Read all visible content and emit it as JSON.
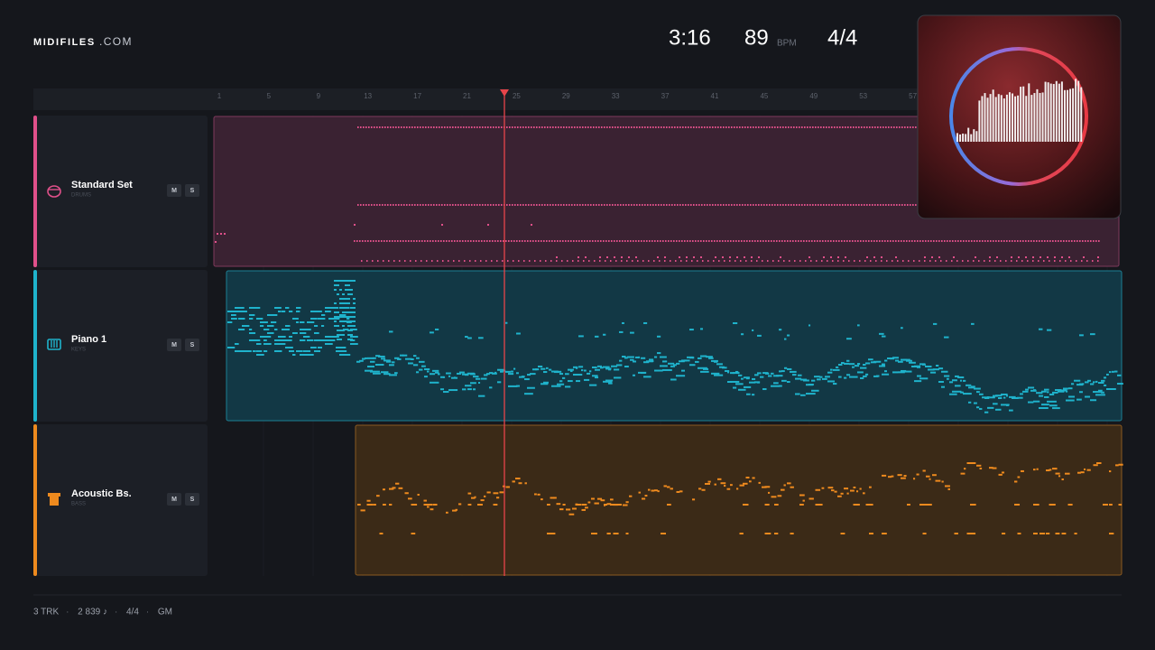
{
  "header": {
    "logo": "MIDIFILES",
    "logo_suffix": ".COM",
    "time": "3:16",
    "tempo": "89",
    "tempo_unit": "BPM",
    "meter": "4/4"
  },
  "ruler": {
    "bars": [
      "1",
      "5",
      "9",
      "13",
      "17",
      "21",
      "25",
      "29",
      "33",
      "37",
      "41",
      "45",
      "49",
      "53",
      "57"
    ]
  },
  "tracks": [
    {
      "name": "Standard Set",
      "category": "DRUMS",
      "mute": "M",
      "solo": "S"
    },
    {
      "name": "Piano 1",
      "category": "KEYS",
      "mute": "M",
      "solo": "S"
    },
    {
      "name": "Acoustic Bs.",
      "category": "BASS",
      "mute": "M",
      "solo": "S"
    }
  ],
  "footer": {
    "items": [
      "3 TRK",
      "2 839 ♪",
      "4/4",
      "GM"
    ],
    "separator": "·"
  }
}
